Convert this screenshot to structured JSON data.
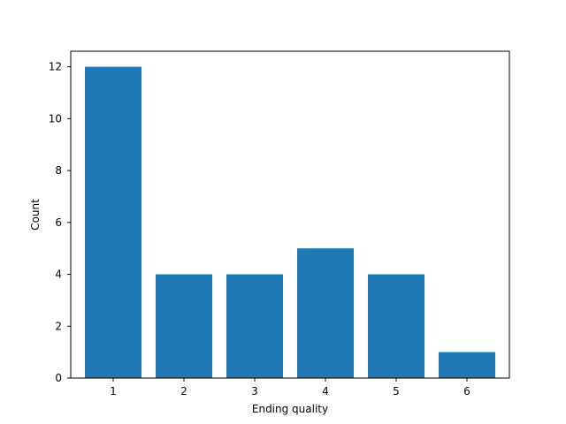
{
  "chart_data": {
    "type": "bar",
    "title": "",
    "xlabel": "Ending quality",
    "ylabel": "Count",
    "categories": [
      "1",
      "2",
      "3",
      "4",
      "5",
      "6"
    ],
    "values": [
      12,
      4,
      4,
      5,
      4,
      1
    ],
    "ylim": [
      0,
      12.6
    ],
    "yticks": [
      0,
      2,
      4,
      6,
      8,
      10,
      12
    ],
    "bar_color": "#1f77b4",
    "grid": false,
    "legend": "none"
  }
}
